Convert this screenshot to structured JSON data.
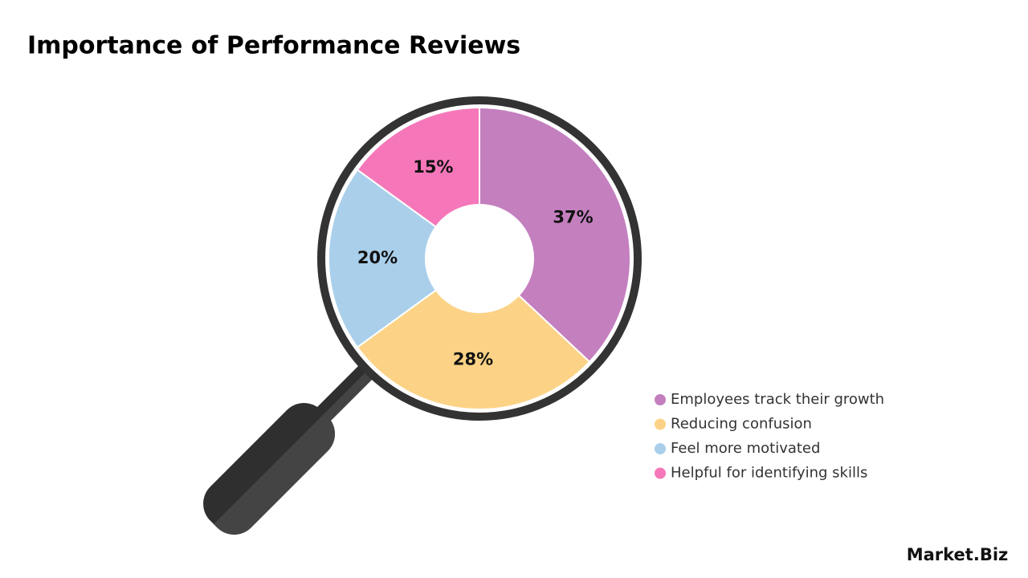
{
  "chart_data": {
    "type": "pie",
    "title": "Importance of Performance Reviews",
    "categories": [
      "Employees track their growth",
      "Reducing confusion",
      "Feel more motivated",
      "Helpful for identifying skills"
    ],
    "values": [
      37,
      28,
      20,
      15
    ],
    "value_labels": [
      "37%",
      "28%",
      "20%",
      "15%"
    ],
    "colors": [
      "#c47fbf",
      "#fcd386",
      "#a9cfeb",
      "#f577b9"
    ],
    "logo": "Market.Biz"
  }
}
